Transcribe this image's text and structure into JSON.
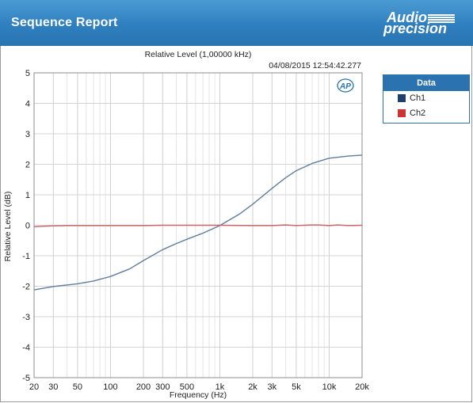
{
  "header": {
    "title": "Sequence Report",
    "logo_line1": "Audio",
    "logo_line2": "precision"
  },
  "chart_data": {
    "type": "line",
    "title": "Relative Level (1,00000 kHz)",
    "timestamp": "04/08/2015 12:54:42.277",
    "xlabel": "Frequency (Hz)",
    "ylabel": "Relative Level (dB)",
    "x_scale": "log",
    "xlim": [
      20,
      20000
    ],
    "ylim": [
      -5,
      5
    ],
    "grid": true,
    "watermark": "AP",
    "x_ticks": [
      {
        "value": 20,
        "label": "20"
      },
      {
        "value": 30,
        "label": "30"
      },
      {
        "value": 50,
        "label": "50"
      },
      {
        "value": 100,
        "label": "100"
      },
      {
        "value": 200,
        "label": "200"
      },
      {
        "value": 300,
        "label": "300"
      },
      {
        "value": 500,
        "label": "500"
      },
      {
        "value": 1000,
        "label": "1k"
      },
      {
        "value": 2000,
        "label": "2k"
      },
      {
        "value": 3000,
        "label": "3k"
      },
      {
        "value": 5000,
        "label": "5k"
      },
      {
        "value": 10000,
        "label": "10k"
      },
      {
        "value": 20000,
        "label": "20k"
      }
    ],
    "y_ticks": [
      {
        "value": 5,
        "label": "5"
      },
      {
        "value": 4,
        "label": "4"
      },
      {
        "value": 3,
        "label": "3"
      },
      {
        "value": 2,
        "label": "2"
      },
      {
        "value": 1,
        "label": "1"
      },
      {
        "value": 0,
        "label": "0"
      },
      {
        "value": -1,
        "label": "-1"
      },
      {
        "value": -2,
        "label": "-2"
      },
      {
        "value": -3,
        "label": "-3"
      },
      {
        "value": -4,
        "label": "-4"
      },
      {
        "value": -5,
        "label": "-5"
      }
    ],
    "series": [
      {
        "name": "Ch1",
        "color": "#5e7e9e",
        "x": [
          20,
          25,
          30,
          40,
          50,
          70,
          100,
          150,
          200,
          300,
          400,
          500,
          700,
          1000,
          1500,
          2000,
          3000,
          4000,
          5000,
          7000,
          10000,
          15000,
          20000
        ],
        "y": [
          -2.12,
          -2.06,
          -2.01,
          -1.96,
          -1.92,
          -1.83,
          -1.68,
          -1.43,
          -1.16,
          -0.8,
          -0.6,
          -0.46,
          -0.26,
          -0.01,
          0.36,
          0.69,
          1.21,
          1.56,
          1.79,
          2.03,
          2.2,
          2.27,
          2.3
        ]
      },
      {
        "name": "Ch2",
        "color": "#c86464",
        "x": [
          20,
          25,
          30,
          40,
          50,
          100,
          200,
          300,
          500,
          1000,
          2000,
          3000,
          4000,
          5000,
          7000,
          8000,
          10000,
          12000,
          15000,
          20000
        ],
        "y": [
          -0.05,
          -0.03,
          -0.02,
          -0.01,
          -0.01,
          -0.01,
          -0.01,
          0.0,
          0.0,
          0.0,
          -0.01,
          -0.01,
          0.01,
          -0.01,
          0.01,
          0.01,
          -0.01,
          0.01,
          -0.01,
          0.0
        ]
      }
    ]
  },
  "legend": {
    "title": "Data",
    "items": [
      {
        "label": "Ch1",
        "color": "#1f3f6e"
      },
      {
        "label": "Ch2",
        "color": "#cc3333"
      }
    ]
  }
}
